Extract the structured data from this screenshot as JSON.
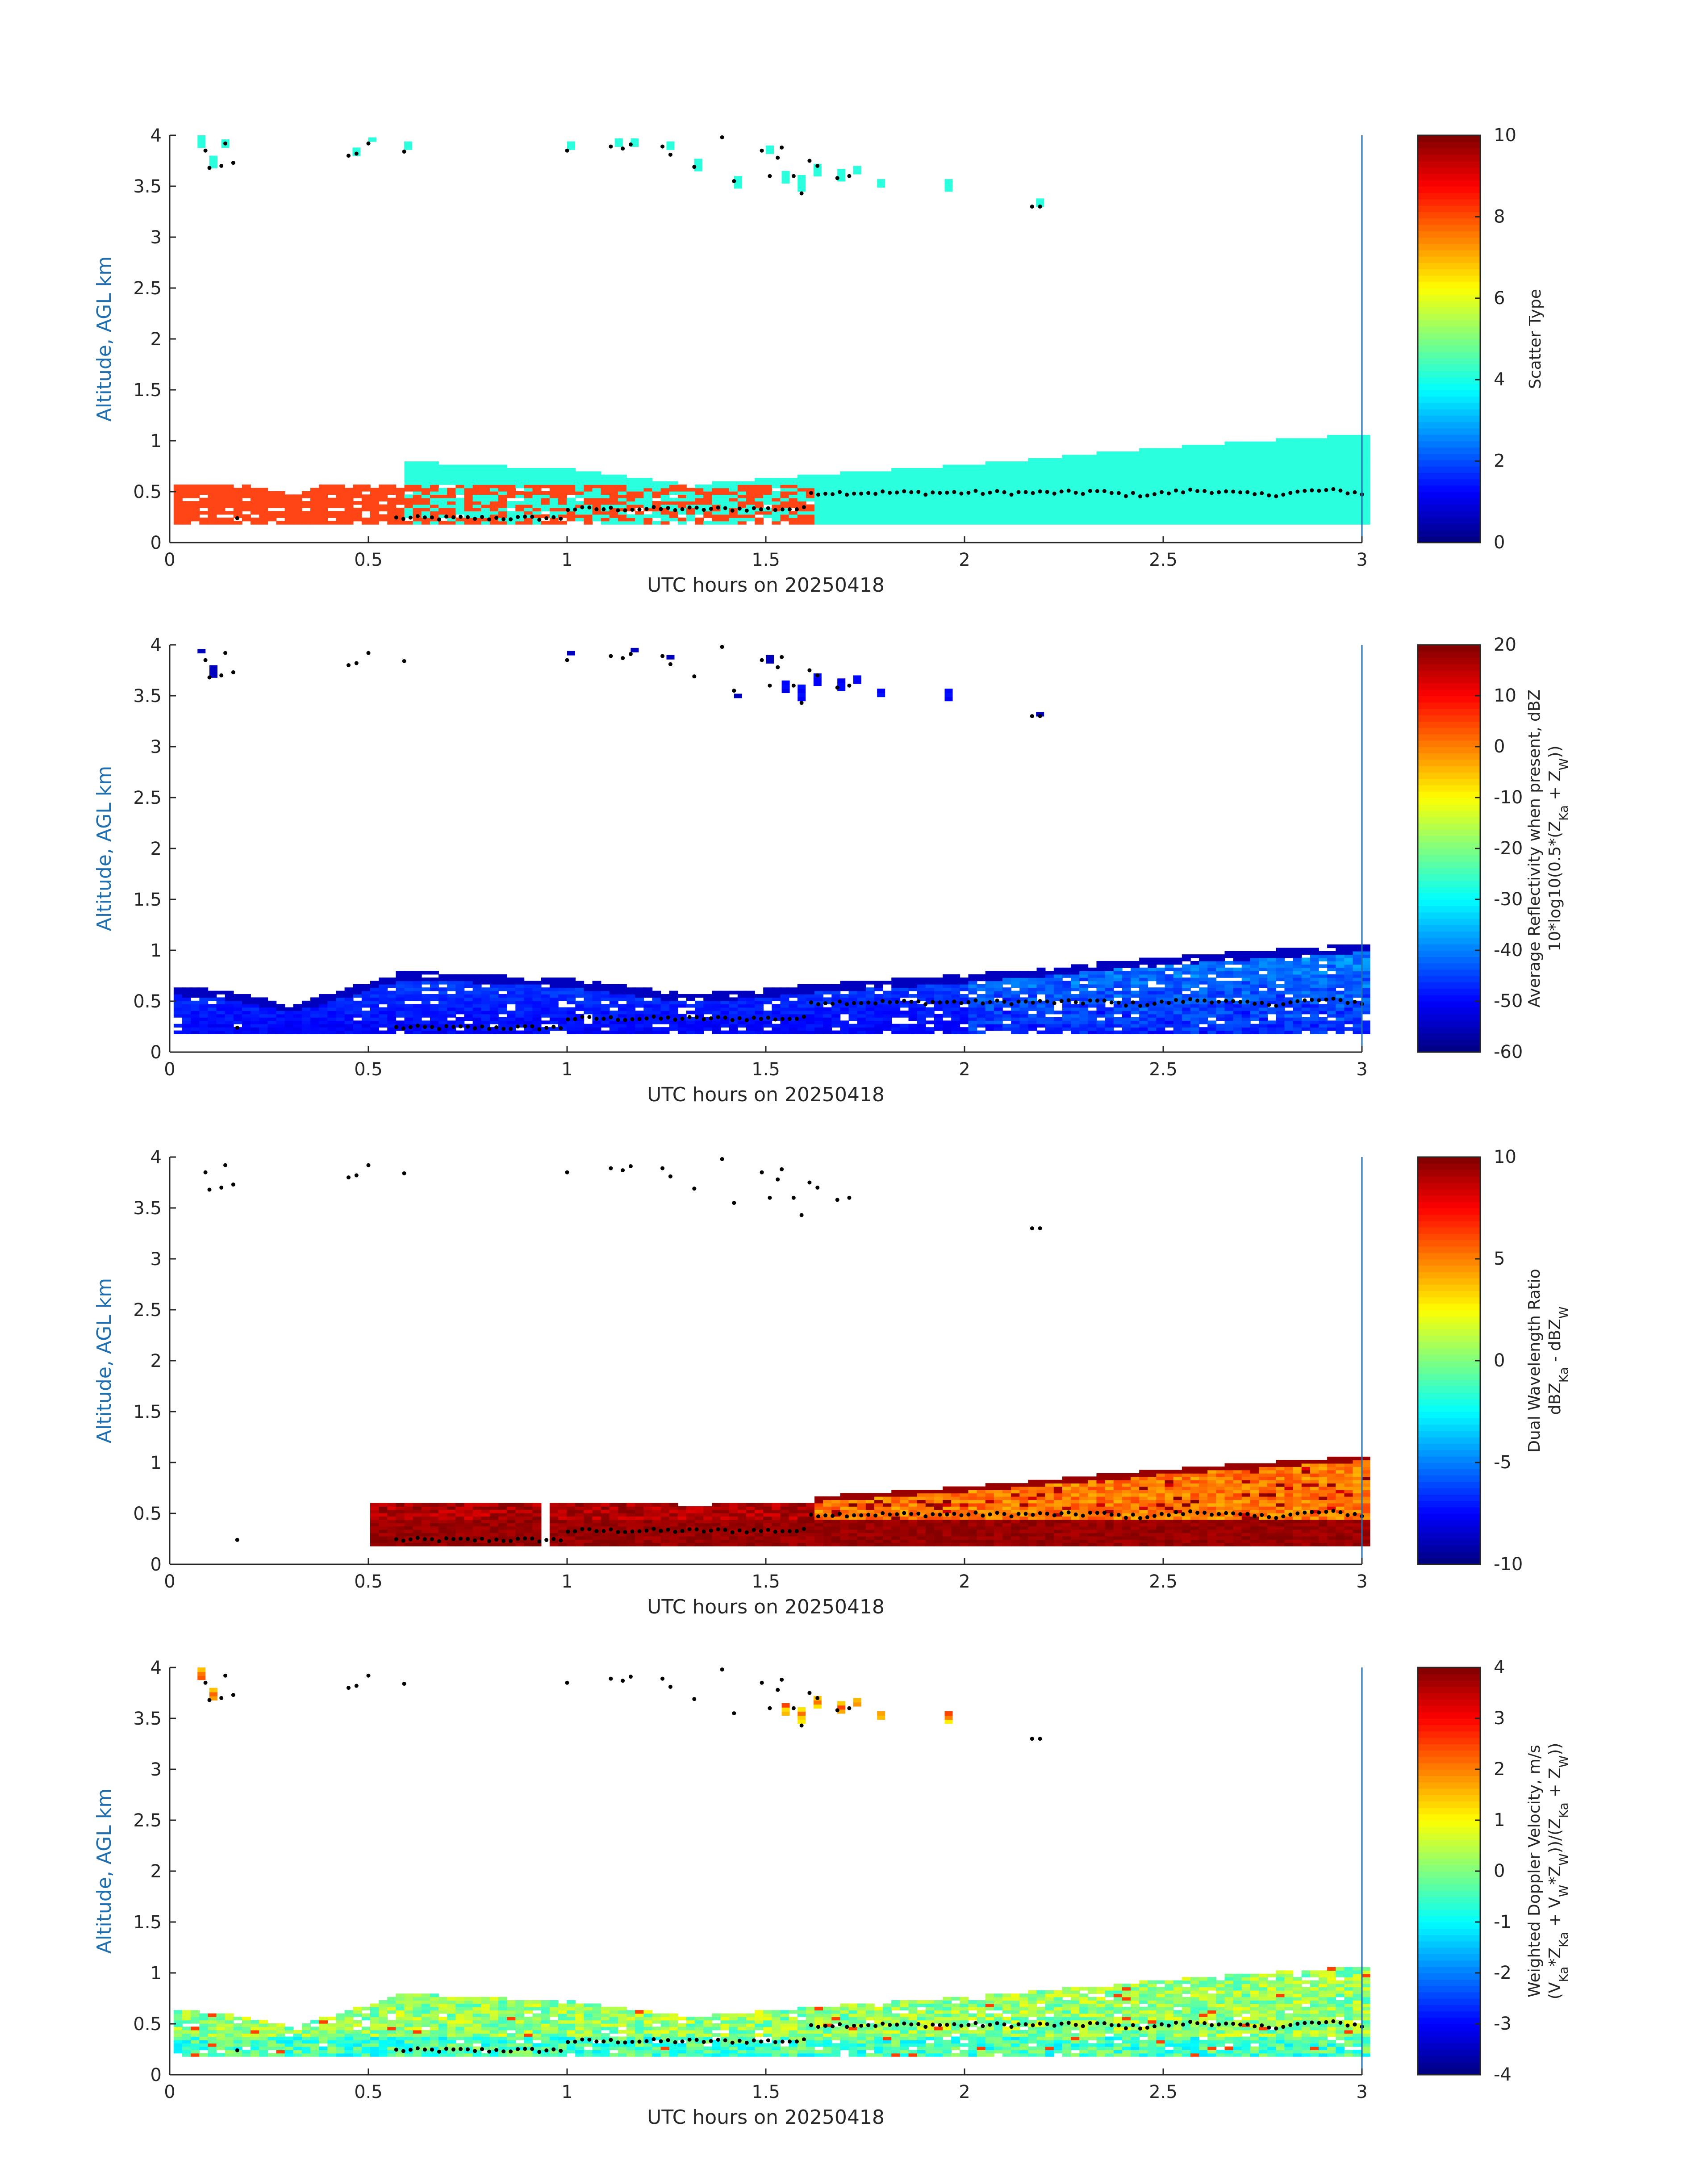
{
  "chart_data": [
    {
      "type": "heatmap",
      "title": "",
      "xlabel": "UTC hours on 20250418",
      "ylabel": "Altitude, AGL km",
      "xlim": [
        0,
        3
      ],
      "ylim": [
        0,
        4
      ],
      "xticks": [
        "0",
        "0.5",
        "1",
        "1.5",
        "2",
        "2.5",
        "3"
      ],
      "yticks": [
        "0",
        "0.5",
        "1",
        "1.5",
        "2",
        "2.5",
        "3",
        "3.5",
        "4"
      ],
      "colormap": "jet",
      "colorbar": {
        "label_lines": [
          "Scatter Type"
        ],
        "range": [
          0,
          10
        ],
        "ticks": [
          "0",
          "2",
          "4",
          "6",
          "8",
          "10"
        ]
      },
      "shown_values": [
        "orange-red (~8.5): near-surface layer 0–1.62 h, 0.2–0.55 km",
        "cyan (~4): cloud layer 0.58–3 h, 0.2–1.0 km and scattered cells at 3.3–4 km"
      ],
      "low_cloud_top_km": [
        [
          0.0,
          0.3
        ],
        [
          0.5,
          0.45
        ],
        [
          0.58,
          0.75
        ],
        [
          1.0,
          0.7
        ],
        [
          1.62,
          0.65
        ],
        [
          2.0,
          0.72
        ],
        [
          2.5,
          0.9
        ],
        [
          3.0,
          1.0
        ]
      ]
    },
    {
      "type": "heatmap",
      "title": "",
      "xlabel": "UTC hours on 20250418",
      "ylabel": "Altitude, AGL km",
      "xlim": [
        0,
        3
      ],
      "ylim": [
        0,
        4
      ],
      "xticks": [
        "0",
        "0.5",
        "1",
        "1.5",
        "2",
        "2.5",
        "3"
      ],
      "yticks": [
        "0",
        "0.5",
        "1",
        "1.5",
        "2",
        "2.5",
        "3",
        "3.5",
        "4"
      ],
      "colormap": "jet",
      "colorbar": {
        "label_lines": [
          "Average Reflectivity when present, dBZ",
          "10*log10(0.5*(Z",
          "Ka",
          " + Z",
          "W",
          "))"
        ],
        "range": [
          -60,
          20
        ],
        "ticks": [
          "-60",
          "-50",
          "-40",
          "-30",
          "-20",
          "-10",
          "0",
          "10",
          "20"
        ]
      },
      "shown_values": [
        "-55 to -35 dBZ in cloud layer 0–3 h, 0.2–1.05 km",
        "about -50 dBZ cells near 3.4–4 km"
      ]
    },
    {
      "type": "heatmap",
      "title": "",
      "xlabel": "UTC hours on 20250418",
      "ylabel": "Altitude, AGL km",
      "xlim": [
        0,
        3
      ],
      "ylim": [
        0,
        4
      ],
      "xticks": [
        "0",
        "0.5",
        "1",
        "1.5",
        "2",
        "2.5",
        "3"
      ],
      "yticks": [
        "0",
        "0.5",
        "1",
        "1.5",
        "2",
        "2.5",
        "3",
        "3.5",
        "4"
      ],
      "colormap": "jet",
      "colorbar": {
        "label_lines": [
          "Dual Wavelength Ratio",
          "dBZ",
          "Ka",
          " - dBZ",
          "W"
        ],
        "range": [
          -10,
          10
        ],
        "ticks": [
          "-10",
          "-5",
          "0",
          "5",
          "10"
        ]
      },
      "shown_values": [
        "8 to 10 dB (dark red) in lower layer 0.5–3 h, 0.25–0.45 km",
        "4 to 6 dB (yellow) above, 1.6–3 h, 0.45–1.0 km"
      ]
    },
    {
      "type": "heatmap",
      "title": "",
      "xlabel": "UTC hours on 20250418",
      "ylabel": "Altitude, AGL km",
      "xlim": [
        0,
        3
      ],
      "ylim": [
        0,
        4
      ],
      "xticks": [
        "0",
        "0.5",
        "1",
        "1.5",
        "2",
        "2.5",
        "3"
      ],
      "yticks": [
        "0",
        "0.5",
        "1",
        "1.5",
        "2",
        "2.5",
        "3",
        "3.5",
        "4"
      ],
      "colormap": "jet",
      "colorbar": {
        "label_lines": [
          "Weighted Doppler Velocity, m/s",
          "(V",
          "Ka",
          "*Z",
          "Ka",
          " + V",
          "W",
          "*Z",
          "W",
          "))/(Z",
          "Ka",
          " + Z",
          "W",
          "))"
        ],
        "range": [
          -4,
          4
        ],
        "ticks": [
          "-4",
          "-3",
          "-2",
          "-1",
          "0",
          "1",
          "2",
          "3",
          "4"
        ]
      },
      "shown_values": [
        "-1 to 1 m/s across cloud layer 0–3 h, 0.2–1.1 km",
        "about 1 to 2.5 m/s in upper cells near 3.5–3.95 km"
      ]
    }
  ],
  "colors": {
    "axis": "#262626",
    "ylabel": "#1f6fb0",
    "right_axis_line": "#1f6fb0",
    "scatter_type_low": "#ff4515",
    "scatter_type_cloud": "#2affde",
    "markers": "#000000"
  }
}
